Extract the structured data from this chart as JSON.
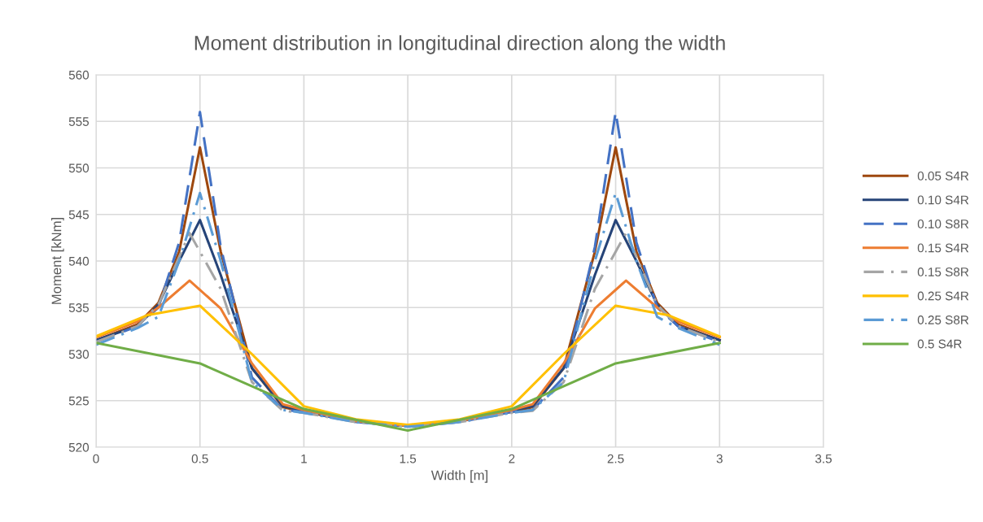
{
  "chart_data": {
    "type": "line",
    "title": "Moment distribution in longitudinal direction along the width",
    "xlabel": "Width [m]",
    "ylabel": "Moment [kNm]",
    "xlim": [
      0,
      3.5
    ],
    "xticks": [
      0,
      0.5,
      1,
      1.5,
      2,
      2.5,
      3,
      3.5
    ],
    "ylim": [
      520,
      560
    ],
    "yticks": [
      520,
      525,
      530,
      535,
      540,
      545,
      550,
      555,
      560
    ],
    "grid": true,
    "legend": "right",
    "marker": "none",
    "series": [
      {
        "name": "0.05 S4R",
        "color": "#9e480e",
        "line_style": "solid",
        "x": [
          0,
          0.2,
          0.3,
          0.4,
          0.5,
          0.6,
          0.75,
          0.9,
          1,
          1.25,
          1.5,
          1.75,
          2,
          2.1,
          2.25,
          2.4,
          2.5,
          2.6,
          2.7,
          2.8,
          3
        ],
        "values": [
          531.5,
          533.2,
          535.5,
          541,
          552.2,
          541,
          528.5,
          524.3,
          523.8,
          522.8,
          522.3,
          522.8,
          523.8,
          524.3,
          528.5,
          541,
          552.2,
          541,
          535.5,
          533.2,
          531.5
        ]
      },
      {
        "name": "0.10 S4R",
        "color": "#264478",
        "line_style": "solid",
        "x": [
          0,
          0.2,
          0.3,
          0.4,
          0.5,
          0.6,
          0.75,
          0.9,
          1,
          1.25,
          1.5,
          1.75,
          2,
          2.1,
          2.25,
          2.4,
          2.5,
          2.6,
          2.7,
          2.8,
          3
        ],
        "values": [
          531.5,
          533,
          535.3,
          540,
          544.4,
          538.5,
          528.5,
          524.4,
          523.9,
          522.8,
          522.3,
          522.8,
          523.9,
          524.4,
          528.5,
          538.5,
          544.4,
          540,
          535.3,
          533,
          531.5
        ]
      },
      {
        "name": "0.10 S8R",
        "color": "#4472c4",
        "line_style": "dashed",
        "x": [
          0,
          0.2,
          0.3,
          0.4,
          0.5,
          0.6,
          0.75,
          0.9,
          1,
          1.25,
          1.5,
          1.75,
          2,
          2.1,
          2.25,
          2.4,
          2.5,
          2.6,
          2.7,
          2.8,
          3
        ],
        "values": [
          531.3,
          533,
          535,
          542,
          556,
          541.5,
          527.5,
          524,
          523.8,
          522.7,
          522.2,
          522.7,
          523.8,
          524,
          527.5,
          541.5,
          556,
          542,
          535,
          533,
          531.3
        ]
      },
      {
        "name": "0.15 S4R",
        "color": "#ed7d31",
        "line_style": "solid",
        "x": [
          0,
          0.2,
          0.3,
          0.45,
          0.6,
          0.75,
          0.9,
          1,
          1.25,
          1.5,
          1.75,
          2,
          2.1,
          2.25,
          2.4,
          2.55,
          2.7,
          2.8,
          3
        ],
        "values": [
          531.8,
          533.5,
          535,
          537.9,
          534.9,
          529,
          524.6,
          524,
          522.8,
          522.3,
          522.8,
          524,
          524.6,
          529,
          534.9,
          537.9,
          535,
          533.5,
          531.8
        ]
      },
      {
        "name": "0.15 S8R",
        "color": "#a5a5a5",
        "line_style": "dashdot",
        "x": [
          0,
          0.2,
          0.3,
          0.45,
          0.6,
          0.75,
          0.9,
          1,
          1.25,
          1.5,
          1.75,
          2,
          2.1,
          2.25,
          2.4,
          2.55,
          2.7,
          2.8,
          3
        ],
        "values": [
          531.3,
          533,
          535.3,
          543,
          537,
          527,
          523.9,
          523.7,
          522.7,
          522.2,
          522.7,
          523.7,
          523.9,
          527,
          537,
          543,
          535.3,
          533,
          531.3
        ]
      },
      {
        "name": "0.25 S4R",
        "color": "#ffc000",
        "line_style": "solid",
        "x": [
          0,
          0.25,
          0.5,
          0.75,
          1,
          1.25,
          1.5,
          1.75,
          2,
          2.25,
          2.5,
          2.75,
          3
        ],
        "values": [
          531.9,
          534.2,
          535.2,
          530,
          524.4,
          523,
          522.4,
          523,
          524.4,
          530,
          535.2,
          534.2,
          531.9
        ]
      },
      {
        "name": "0.25 S8R",
        "color": "#5b9bd5",
        "line_style": "dashdot",
        "x": [
          0,
          0.2,
          0.3,
          0.4,
          0.5,
          0.6,
          0.75,
          0.9,
          1,
          1.25,
          1.5,
          1.75,
          2,
          2.1,
          2.25,
          2.4,
          2.5,
          2.6,
          2.7,
          2.8,
          3
        ],
        "values": [
          531,
          532.8,
          534,
          540,
          547.3,
          540,
          527,
          524,
          523.7,
          522.7,
          522.2,
          522.7,
          523.7,
          524,
          527,
          540,
          547.3,
          540,
          534,
          532.8,
          531
        ]
      },
      {
        "name": "0.5 S4R",
        "color": "#70ad47",
        "line_style": "solid",
        "x": [
          0,
          0.5,
          1,
          1.5,
          2,
          2.5,
          3
        ],
        "values": [
          531.2,
          529,
          524.1,
          521.8,
          524.1,
          529,
          531.2
        ]
      }
    ]
  }
}
